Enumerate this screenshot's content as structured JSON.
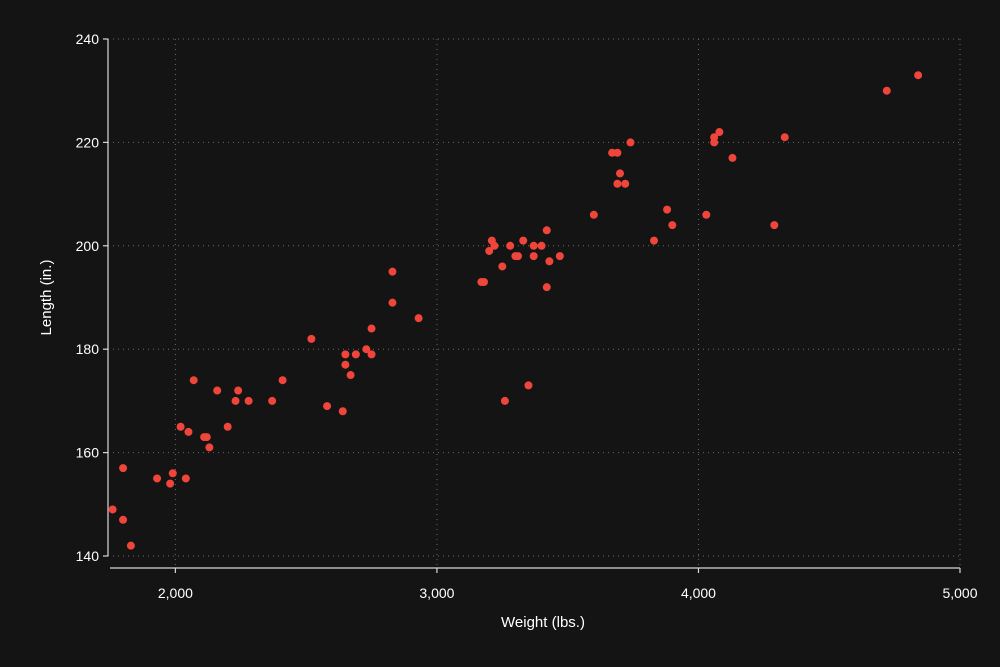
{
  "chart_data": {
    "type": "scatter",
    "title": "",
    "xlabel": "Weight (lbs.)",
    "ylabel": "Length (in.)",
    "xlim": [
      1750,
      5000
    ],
    "ylim": [
      140,
      240
    ],
    "x_ticks": [
      2000,
      3000,
      4000,
      5000
    ],
    "x_tick_labels": [
      "2,000",
      "3,000",
      "4,000",
      "5,000"
    ],
    "y_ticks": [
      140,
      160,
      180,
      200,
      220,
      240
    ],
    "y_tick_labels": [
      "140",
      "160",
      "180",
      "200",
      "220",
      "240"
    ],
    "grid": true,
    "marker_color": "#f0453a",
    "background_color": "#141414",
    "points": [
      [
        1760,
        149
      ],
      [
        1800,
        157
      ],
      [
        1800,
        147
      ],
      [
        1830,
        142
      ],
      [
        1930,
        155
      ],
      [
        1980,
        154
      ],
      [
        1990,
        156
      ],
      [
        2040,
        155
      ],
      [
        2020,
        165
      ],
      [
        2050,
        164
      ],
      [
        2070,
        174
      ],
      [
        2110,
        163
      ],
      [
        2120,
        163
      ],
      [
        2130,
        161
      ],
      [
        2160,
        172
      ],
      [
        2200,
        165
      ],
      [
        2230,
        170
      ],
      [
        2240,
        172
      ],
      [
        2280,
        170
      ],
      [
        2370,
        170
      ],
      [
        2410,
        174
      ],
      [
        2520,
        182
      ],
      [
        2580,
        169
      ],
      [
        2640,
        168
      ],
      [
        2650,
        179
      ],
      [
        2650,
        177
      ],
      [
        2670,
        175
      ],
      [
        2690,
        179
      ],
      [
        2730,
        180
      ],
      [
        2750,
        184
      ],
      [
        2750,
        179
      ],
      [
        2830,
        195
      ],
      [
        2830,
        189
      ],
      [
        2930,
        186
      ],
      [
        3170,
        193
      ],
      [
        3180,
        193
      ],
      [
        3200,
        199
      ],
      [
        3210,
        201
      ],
      [
        3220,
        200
      ],
      [
        3250,
        196
      ],
      [
        3260,
        170
      ],
      [
        3280,
        200
      ],
      [
        3300,
        198
      ],
      [
        3310,
        198
      ],
      [
        3330,
        201
      ],
      [
        3350,
        173
      ],
      [
        3370,
        200
      ],
      [
        3370,
        198
      ],
      [
        3400,
        200
      ],
      [
        3420,
        203
      ],
      [
        3420,
        192
      ],
      [
        3430,
        197
      ],
      [
        3470,
        198
      ],
      [
        3600,
        206
      ],
      [
        3670,
        218
      ],
      [
        3690,
        218
      ],
      [
        3690,
        212
      ],
      [
        3700,
        214
      ],
      [
        3720,
        212
      ],
      [
        3740,
        220
      ],
      [
        3830,
        201
      ],
      [
        3880,
        207
      ],
      [
        3900,
        204
      ],
      [
        4030,
        206
      ],
      [
        4060,
        221
      ],
      [
        4060,
        220
      ],
      [
        4080,
        222
      ],
      [
        4130,
        217
      ],
      [
        4290,
        204
      ],
      [
        4330,
        221
      ],
      [
        4720,
        230
      ],
      [
        4840,
        233
      ]
    ]
  }
}
